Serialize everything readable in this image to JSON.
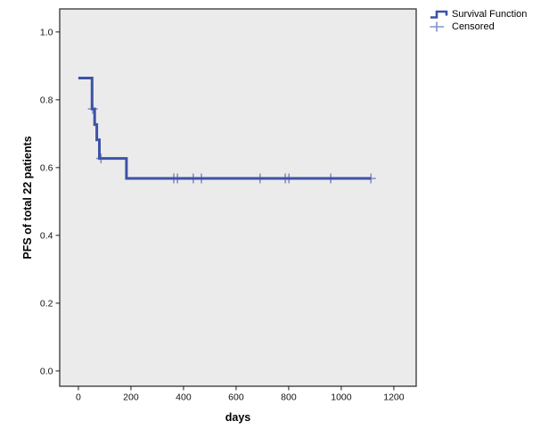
{
  "chart_data": {
    "type": "line",
    "subtype": "kaplan-meier-step",
    "title": "",
    "xlabel": "days",
    "ylabel": "PFS of total 22 patients",
    "xticks": [
      {
        "value": 0,
        "label": "0"
      },
      {
        "value": 200,
        "label": "200"
      },
      {
        "value": 400,
        "label": "400"
      },
      {
        "value": 600,
        "label": "600"
      },
      {
        "value": 800,
        "label": "800"
      },
      {
        "value": 1000,
        "label": "1000"
      },
      {
        "value": 1200,
        "label": "1200"
      }
    ],
    "yticks": [
      {
        "value": 0.0,
        "label": "0.0"
      },
      {
        "value": 0.2,
        "label": "0.2"
      },
      {
        "value": 0.4,
        "label": "0.4"
      },
      {
        "value": 0.6,
        "label": "0.6"
      },
      {
        "value": 0.8,
        "label": "0.8"
      },
      {
        "value": 1.0,
        "label": "1.0"
      }
    ],
    "xlim": [
      -71,
      1285
    ],
    "ylim": [
      -0.045,
      1.068
    ],
    "grid": false,
    "legend": {
      "position": "top-right-outside",
      "entries": [
        {
          "label": "Survival Function",
          "marker": "step-line"
        },
        {
          "label": "Censored",
          "marker": "plus"
        }
      ]
    },
    "series": [
      {
        "name": "Survival Function",
        "steps_days_survival": [
          [
            0,
            0.864
          ],
          [
            52,
            0.773
          ],
          [
            62,
            0.727
          ],
          [
            70,
            0.682
          ],
          [
            80,
            0.627
          ],
          [
            183,
            0.568
          ]
        ],
        "end_day": 1113
      }
    ],
    "censored_days_survival": [
      [
        55,
        0.773
      ],
      [
        86,
        0.627
      ],
      [
        363,
        0.568
      ],
      [
        377,
        0.568
      ],
      [
        437,
        0.568
      ],
      [
        468,
        0.568
      ],
      [
        691,
        0.568
      ],
      [
        787,
        0.568
      ],
      [
        801,
        0.568
      ],
      [
        960,
        0.568
      ],
      [
        1113,
        0.568
      ]
    ],
    "colors": {
      "line": "#3D53A7",
      "censored": "#8290CB",
      "plot_bg": "#EBEBEB",
      "plot_border": "#424242",
      "tick": "#1A1A1A",
      "tick_text": "#111111"
    }
  }
}
